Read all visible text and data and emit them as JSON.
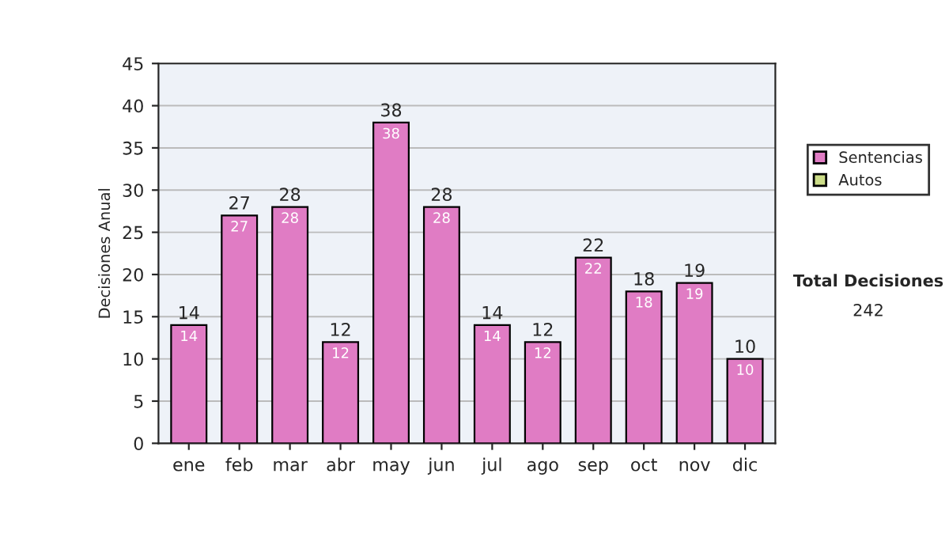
{
  "chart_data": {
    "type": "bar",
    "stacked": true,
    "ylabel": "Decisiones Anual",
    "categories": [
      "ene",
      "feb",
      "mar",
      "abr",
      "may",
      "jun",
      "jul",
      "ago",
      "sep",
      "oct",
      "nov",
      "dic"
    ],
    "series": [
      {
        "name": "Sentencias",
        "color": "#e07cc4",
        "values": [
          14,
          27,
          28,
          12,
          38,
          28,
          14,
          12,
          22,
          18,
          19,
          10
        ],
        "value_labels": [
          "14",
          "27",
          "28",
          "12",
          "38",
          "28",
          "14",
          "12",
          "22",
          "18",
          "19",
          "10"
        ]
      },
      {
        "name": "Autos",
        "color": "#ccdd88",
        "values": [
          null,
          null,
          null,
          null,
          null,
          null,
          null,
          null,
          null,
          null,
          null,
          null
        ]
      }
    ],
    "totals": [
      "14",
      "27",
      "28",
      "12",
      "38",
      "28",
      "14",
      "12",
      "22",
      "18",
      "19",
      "10"
    ],
    "ylim": [
      0,
      45
    ],
    "yticks": [
      0,
      5,
      10,
      15,
      20,
      25,
      30,
      35,
      40,
      45
    ],
    "grid": "y",
    "legend": "right",
    "annotations": [
      "Total Decisiones",
      "242"
    ]
  }
}
